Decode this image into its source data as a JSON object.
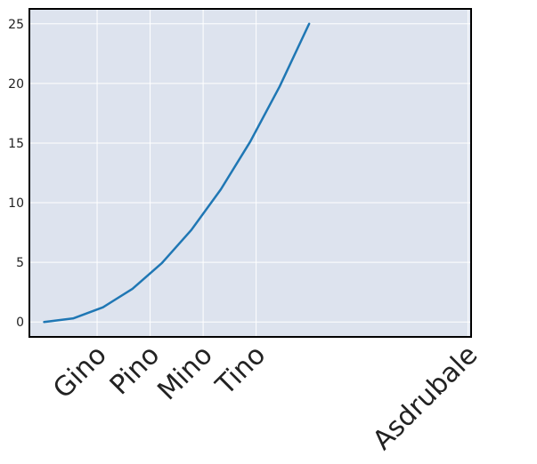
{
  "chart_data": {
    "type": "line",
    "title": "",
    "xlabel": "",
    "ylabel": "",
    "x": [
      0,
      1,
      2,
      3,
      4,
      5,
      6,
      7,
      8,
      9
    ],
    "series": [
      {
        "values": [
          0,
          0.309,
          1.235,
          2.778,
          4.938,
          7.716,
          11.111,
          15.123,
          19.753,
          25.0
        ],
        "color": "#1f77b4"
      }
    ],
    "xlim": [
      -0.5,
      14.5
    ],
    "ylim": [
      -1.25,
      26.25
    ],
    "xticks": [
      {
        "value": 1.8,
        "label": "Gino"
      },
      {
        "value": 3.6,
        "label": "Pino"
      },
      {
        "value": 5.4,
        "label": "Mino"
      },
      {
        "value": 7.2,
        "label": "Tino"
      },
      {
        "value": 14.4,
        "label": "Asdrubale"
      }
    ],
    "yticks": [
      0,
      5,
      10,
      15,
      20,
      25
    ],
    "grid": true,
    "background_color": "#dde3ee",
    "grid_color": "#ffffff"
  }
}
